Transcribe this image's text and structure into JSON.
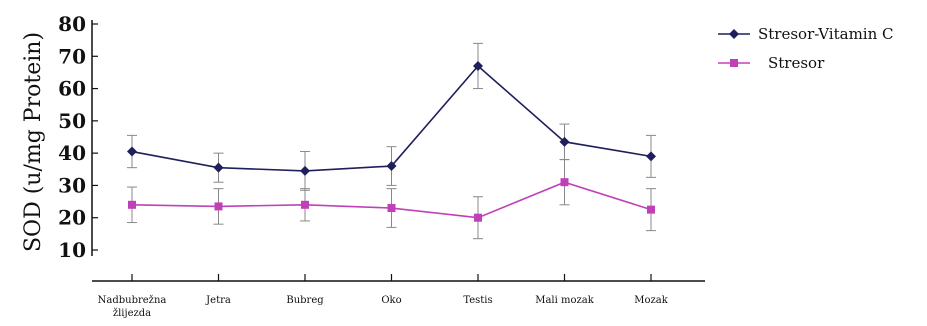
{
  "chart_data": {
    "type": "line",
    "ylabel": "SOD (u/mg Protein)",
    "xlabel": "",
    "title": "",
    "ylim": [
      10,
      80
    ],
    "yticks": [
      10,
      20,
      30,
      40,
      50,
      60,
      70,
      80
    ],
    "categories": [
      [
        "Nadbubrežna",
        "žlijezda"
      ],
      [
        "Jetra"
      ],
      [
        "Bubreg"
      ],
      [
        "Oko"
      ],
      [
        "Testis"
      ],
      [
        "Mali mozak"
      ],
      [
        "Mozak"
      ]
    ],
    "legend_position": "top-right",
    "grid": false,
    "series": [
      {
        "name": "Stresor-Vitamin C",
        "color": "#1f1f5c",
        "marker": "diamond",
        "values": [
          40.5,
          35.5,
          34.5,
          36,
          67,
          43.5,
          39
        ],
        "error": [
          5,
          4.5,
          6,
          6,
          7,
          5.5,
          6.5
        ]
      },
      {
        "name": "Stresor",
        "color": "#c040b8",
        "marker": "square",
        "values": [
          24,
          23.5,
          24,
          23,
          20,
          31,
          22.5
        ],
        "error": [
          5.5,
          5.5,
          5,
          6,
          6.5,
          7,
          6.5
        ]
      }
    ]
  }
}
